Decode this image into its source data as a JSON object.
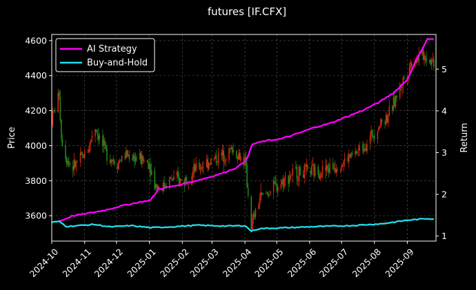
{
  "chart_data": {
    "type": "line",
    "title": "futures [IF.CFX]",
    "ylabel_left": "Price",
    "ylabel_right": "Return",
    "x_ticks": [
      "2024-10",
      "2024-11",
      "2024-12",
      "2025-01",
      "2025-02",
      "2025-03",
      "2025-04",
      "2025-05",
      "2025-06",
      "2025-07",
      "2025-08",
      "2025-09"
    ],
    "y_left_ticks": [
      3600,
      3800,
      4000,
      4200,
      4400,
      4600
    ],
    "y_left_range": [
      3455,
      4635
    ],
    "y_right_ticks": [
      1,
      2,
      3,
      4,
      5
    ],
    "y_right_range": [
      0.88,
      5.83
    ],
    "grid": true,
    "legend_position": "top-left",
    "colors": {
      "background": "#000000",
      "ai_strategy": "#ff00ff",
      "buy_and_hold": "#1ee0ee",
      "candle_up": "#d62810",
      "candle_down": "#1f8a1f",
      "grid": "#5a5a5a"
    },
    "series": [
      {
        "name": "AI Strategy",
        "axis": "right",
        "points": [
          [
            "2024-10-08",
            1.35
          ],
          [
            "2024-10-20",
            1.48
          ],
          [
            "2024-11-05",
            1.55
          ],
          [
            "2024-11-20",
            1.62
          ],
          [
            "2024-12-05",
            1.72
          ],
          [
            "2024-12-20",
            1.8
          ],
          [
            "2025-01-02",
            1.86
          ],
          [
            "2025-01-10",
            2.13
          ],
          [
            "2025-01-25",
            2.2
          ],
          [
            "2025-02-10",
            2.3
          ],
          [
            "2025-02-25",
            2.4
          ],
          [
            "2025-03-10",
            2.5
          ],
          [
            "2025-03-25",
            2.65
          ],
          [
            "2025-04-03",
            2.85
          ],
          [
            "2025-04-08",
            3.2
          ],
          [
            "2025-04-20",
            3.28
          ],
          [
            "2025-05-05",
            3.33
          ],
          [
            "2025-05-20",
            3.45
          ],
          [
            "2025-06-05",
            3.6
          ],
          [
            "2025-06-20",
            3.7
          ],
          [
            "2025-07-05",
            3.85
          ],
          [
            "2025-07-20",
            4.0
          ],
          [
            "2025-08-05",
            4.2
          ],
          [
            "2025-08-20",
            4.45
          ],
          [
            "2025-09-01",
            4.75
          ],
          [
            "2025-09-10",
            5.25
          ],
          [
            "2025-09-20",
            5.72
          ],
          [
            "2025-09-26",
            5.72
          ]
        ]
      },
      {
        "name": "Buy-and-Hold",
        "axis": "right",
        "points": [
          [
            "2024-10-01",
            1.33
          ],
          [
            "2024-10-08",
            1.35
          ],
          [
            "2024-10-15",
            1.23
          ],
          [
            "2024-10-25",
            1.25
          ],
          [
            "2024-11-10",
            1.28
          ],
          [
            "2024-11-25",
            1.22
          ],
          [
            "2024-12-15",
            1.25
          ],
          [
            "2025-01-02",
            1.2
          ],
          [
            "2025-01-20",
            1.22
          ],
          [
            "2025-02-15",
            1.26
          ],
          [
            "2025-03-15",
            1.24
          ],
          [
            "2025-04-01",
            1.25
          ],
          [
            "2025-04-07",
            1.12
          ],
          [
            "2025-04-15",
            1.18
          ],
          [
            "2025-05-10",
            1.2
          ],
          [
            "2025-06-10",
            1.23
          ],
          [
            "2025-07-10",
            1.25
          ],
          [
            "2025-08-10",
            1.3
          ],
          [
            "2025-09-01",
            1.38
          ],
          [
            "2025-09-20",
            1.42
          ],
          [
            "2025-09-26",
            1.41
          ]
        ]
      }
    ],
    "price_candles": {
      "axis": "left",
      "path": [
        [
          "2024-10-01",
          4150
        ],
        [
          "2024-10-08",
          4300
        ],
        [
          "2024-10-10",
          4050
        ],
        [
          "2024-10-15",
          3930
        ],
        [
          "2024-10-20",
          3870
        ],
        [
          "2024-10-28",
          3920
        ],
        [
          "2024-11-05",
          3990
        ],
        [
          "2024-11-10",
          4120
        ],
        [
          "2024-11-20",
          3970
        ],
        [
          "2024-12-01",
          3900
        ],
        [
          "2024-12-10",
          3950
        ],
        [
          "2024-12-20",
          3930
        ],
        [
          "2025-01-01",
          3900
        ],
        [
          "2025-01-06",
          3780
        ],
        [
          "2025-01-13",
          3760
        ],
        [
          "2025-01-20",
          3810
        ],
        [
          "2025-02-01",
          3800
        ],
        [
          "2025-02-15",
          3870
        ],
        [
          "2025-03-01",
          3920
        ],
        [
          "2025-03-10",
          3940
        ],
        [
          "2025-03-20",
          3980
        ],
        [
          "2025-04-01",
          3910
        ],
        [
          "2025-04-07",
          3540
        ],
        [
          "2025-04-15",
          3700
        ],
        [
          "2025-05-01",
          3770
        ],
        [
          "2025-05-15",
          3840
        ],
        [
          "2025-06-01",
          3850
        ],
        [
          "2025-06-15",
          3860
        ],
        [
          "2025-07-01",
          3900
        ],
        [
          "2025-07-15",
          3960
        ],
        [
          "2025-07-25",
          4020
        ],
        [
          "2025-08-05",
          4120
        ],
        [
          "2025-08-15",
          4180
        ],
        [
          "2025-08-25",
          4330
        ],
        [
          "2025-09-05",
          4480
        ],
        [
          "2025-09-15",
          4520
        ],
        [
          "2025-09-26",
          4480
        ]
      ]
    }
  }
}
